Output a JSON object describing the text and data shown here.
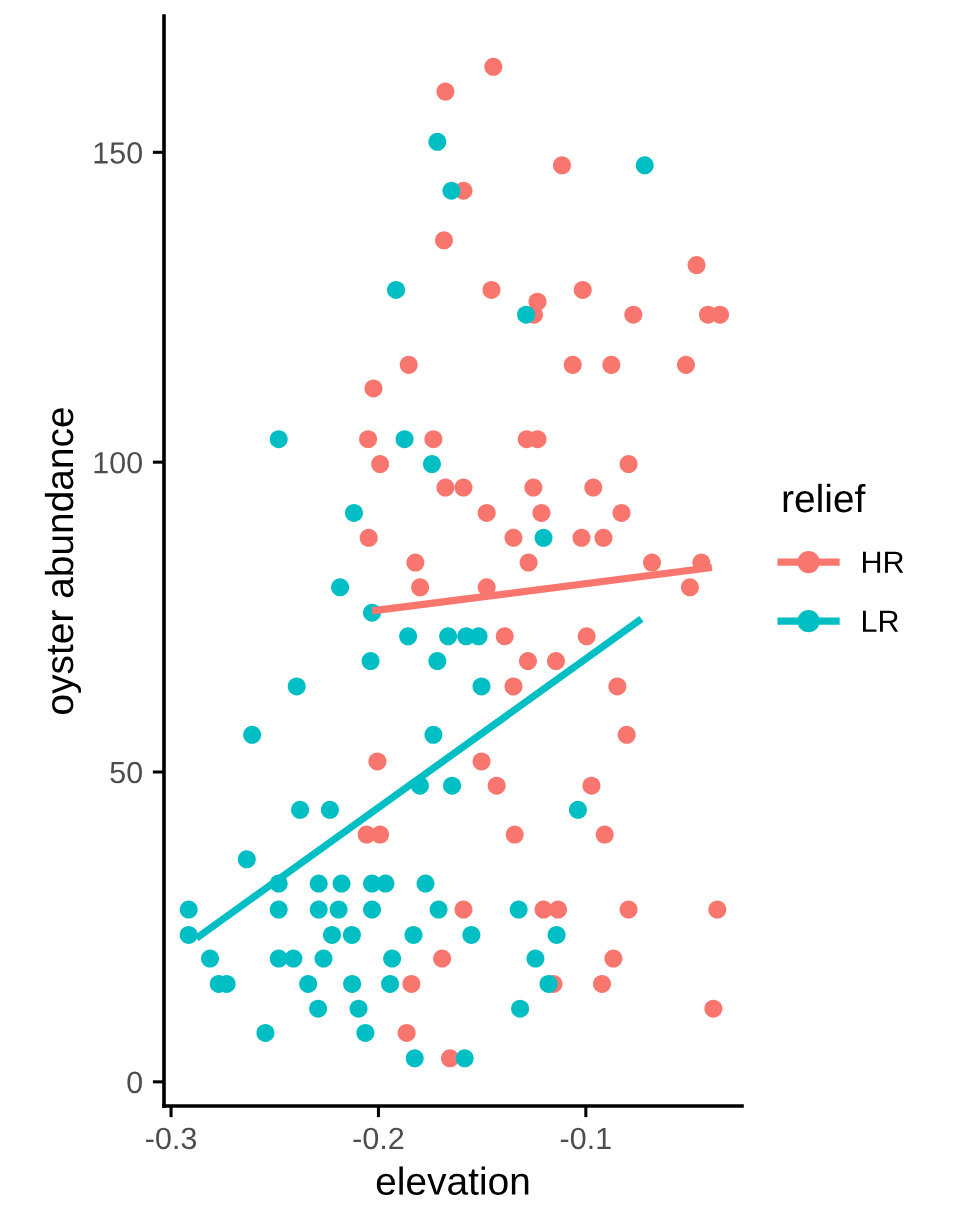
{
  "chart_data": {
    "type": "scatter",
    "xlabel": "elevation",
    "ylabel": "oyster abundance",
    "legend_title": "relief",
    "legend": "right",
    "grid": false,
    "xlim": [
      -0.3034,
      -0.0247
    ],
    "ylim": [
      -3.9,
      172
    ],
    "xticks": [
      -0.3,
      -0.2,
      -0.1
    ],
    "yticks": [
      0,
      50,
      100,
      150
    ],
    "series": [
      {
        "name": "HR",
        "color": "#f8766d",
        "marker": "circle",
        "x": [
          -0.1446,
          -0.1677,
          -0.1115,
          -0.159,
          -0.1684,
          -0.1455,
          -0.1233,
          -0.125,
          -0.1015,
          -0.0466,
          -0.0771,
          -0.0411,
          -0.0353,
          -0.1854,
          -0.2024,
          -0.1063,
          -0.0877,
          -0.0517,
          -0.205,
          -0.1735,
          -0.1285,
          -0.1233,
          -0.1992,
          -0.1677,
          -0.159,
          -0.1253,
          -0.0964,
          -0.0794,
          -0.1478,
          -0.1214,
          -0.0828,
          -0.2047,
          -0.1349,
          -0.1021,
          -0.0915,
          -0.1822,
          -0.1276,
          -0.0681,
          -0.0443,
          -0.1799,
          -0.1478,
          -0.0498,
          -0.1391,
          -0.0996,
          -0.1279,
          -0.1144,
          -0.1349,
          -0.0848,
          -0.0803,
          -0.2005,
          -0.1503,
          -0.143,
          -0.0973,
          -0.2057,
          -0.1992,
          -0.1343,
          -0.0909,
          -0.159,
          -0.1204,
          -0.1134,
          -0.0794,
          -0.0366,
          -0.1693,
          -0.0867,
          -0.1841,
          -0.1156,
          -0.0922,
          -0.0385,
          -0.1864,
          -0.1655
        ],
        "values": [
          163.8,
          159.8,
          147.9,
          143.8,
          135.8,
          127.8,
          125.9,
          123.8,
          127.8,
          131.8,
          123.8,
          123.8,
          123.8,
          115.7,
          111.9,
          115.7,
          115.7,
          115.7,
          103.7,
          103.7,
          103.7,
          103.7,
          99.7,
          95.9,
          95.9,
          95.9,
          95.9,
          99.7,
          91.8,
          91.8,
          91.8,
          87.8,
          87.8,
          87.8,
          87.8,
          83.8,
          83.8,
          83.8,
          83.8,
          79.8,
          79.8,
          79.8,
          71.9,
          71.9,
          67.9,
          67.9,
          63.8,
          63.8,
          56.0,
          51.7,
          51.7,
          47.8,
          47.8,
          39.9,
          39.9,
          39.9,
          39.9,
          27.8,
          27.8,
          27.8,
          27.8,
          27.8,
          19.9,
          19.9,
          15.8,
          15.8,
          15.8,
          11.8,
          7.9,
          3.8
        ]
      },
      {
        "name": "LR",
        "color": "#00bfc4",
        "marker": "circle",
        "x": [
          -0.1716,
          -0.0716,
          -0.1648,
          -0.1915,
          -0.1288,
          -0.2481,
          -0.1874,
          -0.1742,
          -0.2118,
          -0.1204,
          -0.2185,
          -0.2031,
          -0.1857,
          -0.1664,
          -0.1577,
          -0.1517,
          -0.2038,
          -0.1716,
          -0.2394,
          -0.1503,
          -0.2609,
          -0.1735,
          -0.18,
          -0.1645,
          -0.2378,
          -0.2234,
          -0.1038,
          -0.2635,
          -0.2481,
          -0.2288,
          -0.2178,
          -0.2031,
          -0.1966,
          -0.1773,
          -0.2915,
          -0.2481,
          -0.2288,
          -0.2192,
          -0.2031,
          -0.171,
          -0.1324,
          -0.2915,
          -0.2224,
          -0.2128,
          -0.1831,
          -0.1552,
          -0.1141,
          -0.2812,
          -0.2481,
          -0.241,
          -0.2265,
          -0.1934,
          -0.1243,
          -0.277,
          -0.2732,
          -0.2339,
          -0.2127,
          -0.1944,
          -0.118,
          -0.2291,
          -0.2096,
          -0.1317,
          -0.2545,
          -0.2063,
          -0.1825,
          -0.1584
        ],
        "values": [
          151.7,
          147.9,
          143.8,
          127.8,
          123.8,
          103.7,
          103.7,
          99.7,
          91.8,
          87.8,
          79.8,
          75.7,
          71.9,
          71.9,
          71.9,
          71.9,
          67.9,
          67.9,
          63.8,
          63.8,
          56.0,
          56.0,
          47.8,
          47.8,
          43.9,
          43.9,
          43.9,
          35.9,
          32.0,
          32.0,
          32.0,
          32.0,
          32.0,
          32.0,
          27.8,
          27.8,
          27.8,
          27.8,
          27.8,
          27.8,
          27.8,
          23.7,
          23.7,
          23.7,
          23.7,
          23.7,
          23.7,
          19.9,
          19.9,
          19.9,
          19.9,
          19.9,
          19.9,
          15.8,
          15.8,
          15.8,
          15.8,
          15.8,
          15.8,
          11.8,
          11.8,
          11.8,
          7.9,
          7.9,
          3.8,
          3.8
        ]
      },
      {
        "color": "#f8766d",
        "type": "line",
        "x": [
          -0.2031,
          -0.0392
        ],
        "values": [
          76.0,
          83.0
        ]
      },
      {
        "color": "#00bfc4",
        "type": "line",
        "x": [
          -0.2877,
          -0.0732
        ],
        "values": [
          23.2,
          74.7
        ]
      }
    ]
  }
}
